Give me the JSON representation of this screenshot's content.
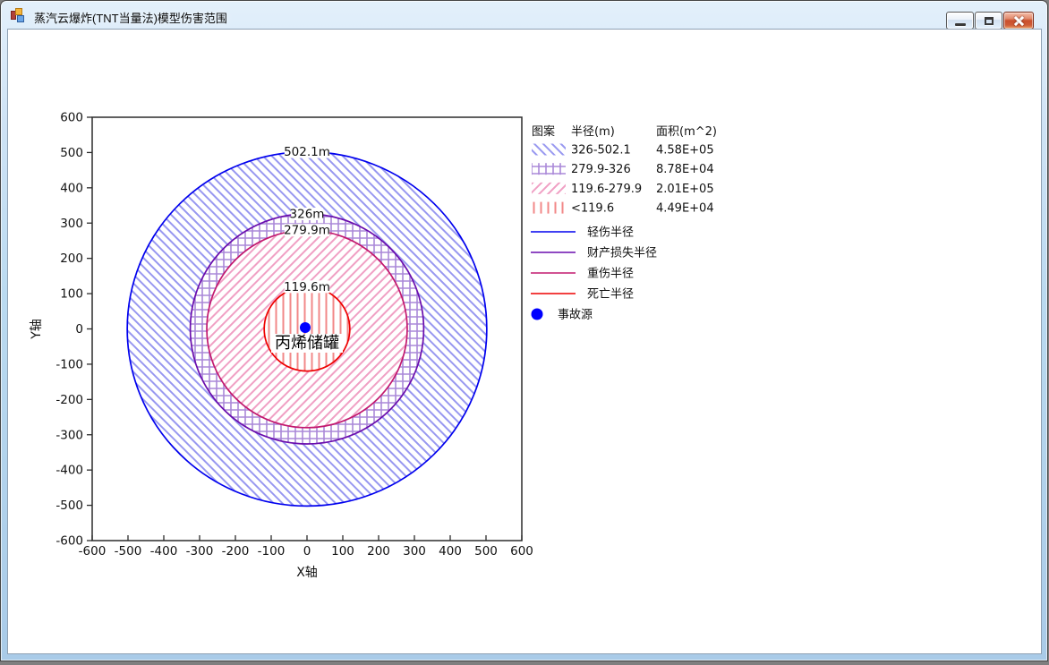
{
  "window": {
    "title": "蒸汽云爆炸(TNT当量法)模型伤害范围",
    "controls": [
      {
        "name": "minimize",
        "icon": "minimize-icon"
      },
      {
        "name": "maximize",
        "icon": "maximize-icon"
      },
      {
        "name": "close",
        "icon": "close-icon"
      }
    ]
  },
  "chart_data": {
    "type": "concentric-damage-rings",
    "xlabel": "X轴",
    "ylabel": "Y轴",
    "xlim": [
      -600,
      600
    ],
    "ylim": [
      -600,
      600
    ],
    "xticks": [
      -600,
      -500,
      -400,
      -300,
      -200,
      -100,
      0,
      100,
      200,
      300,
      400,
      500,
      600
    ],
    "yticks": [
      -600,
      -500,
      -400,
      -300,
      -200,
      -100,
      0,
      100,
      200,
      300,
      400,
      500,
      600
    ],
    "grid": false,
    "center": {
      "x": 0,
      "y": 0
    },
    "rings": [
      {
        "radius_m": 502.1,
        "label": "502.1m",
        "legend_line": "轻伤半径",
        "stroke": "#0000EE",
        "pattern": "diag_forward",
        "range": "326-502.1",
        "area_m2": "4.58E+05"
      },
      {
        "radius_m": 326,
        "label": "326m",
        "legend_line": "财产损失半径",
        "stroke": "#6A0DAD",
        "pattern": "grid",
        "range": "279.9-326",
        "area_m2": "8.78E+04"
      },
      {
        "radius_m": 279.9,
        "label": "279.9m",
        "legend_line": "重伤半径",
        "stroke": "#C2186E",
        "pattern": "diag_back",
        "range": "119.6-279.9",
        "area_m2": "2.01E+05"
      },
      {
        "radius_m": 119.6,
        "label": "119.6m",
        "legend_line": "死亡半径",
        "stroke": "#EE0000",
        "pattern": "vertical",
        "range": "<119.6",
        "area_m2": "4.49E+04"
      }
    ],
    "patterns": {
      "diag_forward": {
        "color": "#9898F0"
      },
      "grid": {
        "color": "#AA88D8"
      },
      "diag_back": {
        "color": "#F0A0C4"
      },
      "vertical": {
        "color": "#F28888"
      }
    },
    "source": {
      "label": "事故源",
      "site_label": "丙烯储罐",
      "color": "#0000FF"
    },
    "legend": {
      "headers": [
        "图案",
        "半径(m)",
        "面积(m^2)"
      ],
      "position": "right"
    }
  }
}
